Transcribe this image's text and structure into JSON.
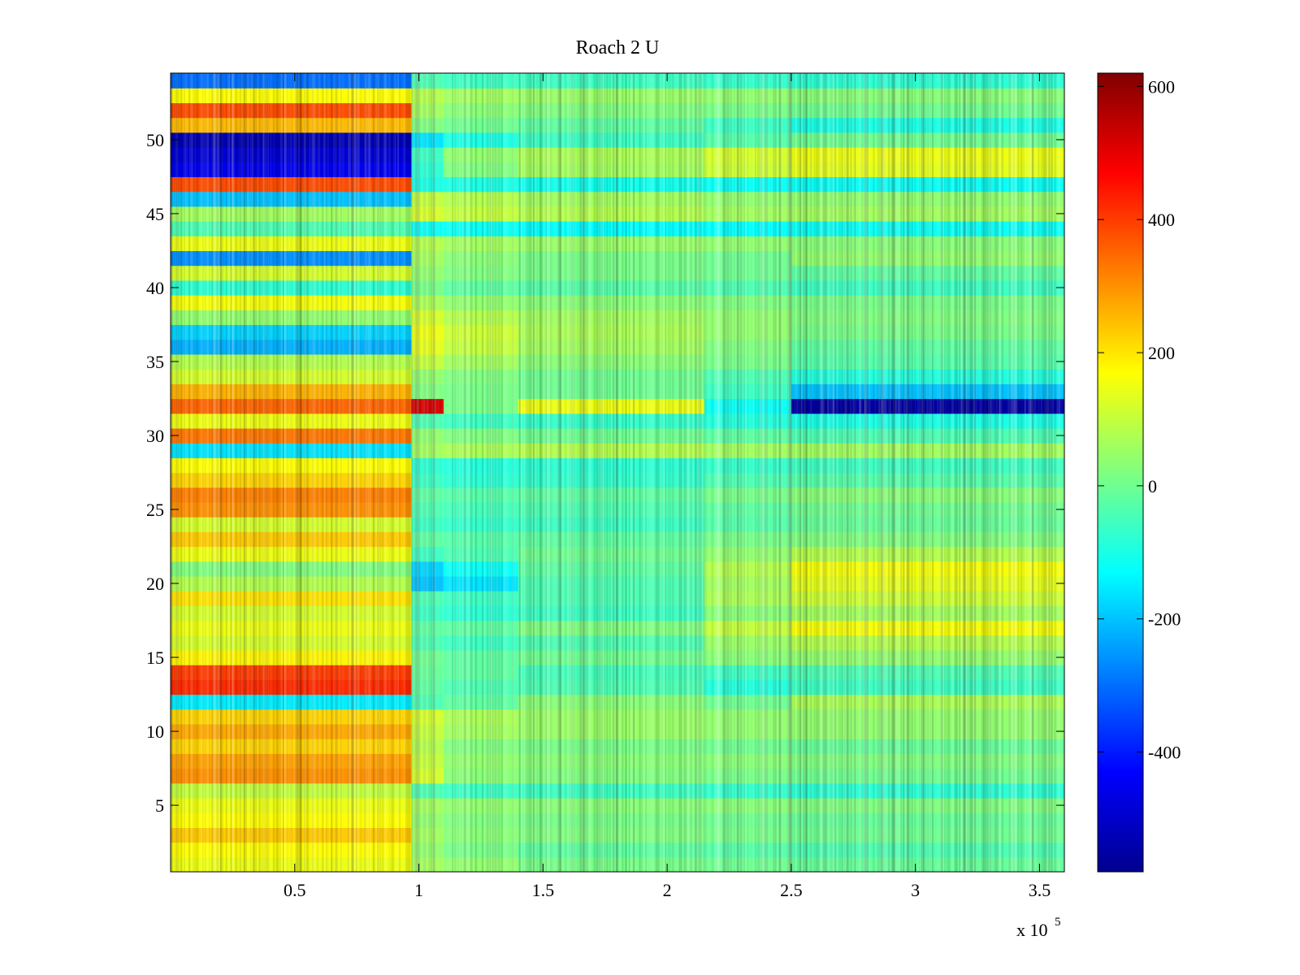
{
  "chart_data": {
    "type": "heatmap",
    "title": "Roach 2 U",
    "xlabel": "",
    "ylabel": "",
    "x_multiplier_label": "x 10",
    "x_multiplier_exponent": "5",
    "xlim": [
      0,
      360000
    ],
    "ylim": [
      0.5,
      54.5
    ],
    "x_ticks": [
      {
        "value": 50000,
        "label": "0.5"
      },
      {
        "value": 100000,
        "label": "1"
      },
      {
        "value": 150000,
        "label": "1.5"
      },
      {
        "value": 200000,
        "label": "2"
      },
      {
        "value": 250000,
        "label": "2.5"
      },
      {
        "value": 300000,
        "label": "3"
      },
      {
        "value": 350000,
        "label": "3.5"
      }
    ],
    "y_ticks": [
      {
        "value": 5,
        "label": "5"
      },
      {
        "value": 10,
        "label": "10"
      },
      {
        "value": 15,
        "label": "15"
      },
      {
        "value": 20,
        "label": "20"
      },
      {
        "value": 25,
        "label": "25"
      },
      {
        "value": 30,
        "label": "30"
      },
      {
        "value": 35,
        "label": "35"
      },
      {
        "value": 40,
        "label": "40"
      },
      {
        "value": 45,
        "label": "45"
      },
      {
        "value": 50,
        "label": "50"
      }
    ],
    "colormap": "jet",
    "clim": [
      -580,
      620
    ],
    "colorbar_ticks": [
      {
        "value": 600,
        "label": "600"
      },
      {
        "value": 400,
        "label": "400"
      },
      {
        "value": 200,
        "label": "200"
      },
      {
        "value": 0,
        "label": "0"
      },
      {
        "value": -200,
        "label": "-200"
      },
      {
        "value": -400,
        "label": "-400"
      }
    ],
    "time_segments": [
      0,
      97000,
      110000,
      140000,
      215000,
      250000,
      360000
    ],
    "rows": [
      {
        "row": 1,
        "values": [
          150,
          60,
          40,
          10,
          0,
          -10
        ]
      },
      {
        "row": 2,
        "values": [
          170,
          40,
          10,
          -20,
          -30,
          -40
        ]
      },
      {
        "row": 3,
        "values": [
          230,
          60,
          30,
          20,
          10,
          0
        ]
      },
      {
        "row": 4,
        "values": [
          170,
          40,
          20,
          10,
          0,
          -10
        ]
      },
      {
        "row": 5,
        "values": [
          150,
          60,
          40,
          30,
          30,
          20
        ]
      },
      {
        "row": 6,
        "values": [
          100,
          -40,
          -60,
          -60,
          -70,
          -80
        ]
      },
      {
        "row": 7,
        "values": [
          300,
          120,
          30,
          20,
          10,
          0
        ]
      },
      {
        "row": 8,
        "values": [
          280,
          100,
          40,
          30,
          30,
          20
        ]
      },
      {
        "row": 9,
        "values": [
          220,
          80,
          20,
          10,
          0,
          -10
        ]
      },
      {
        "row": 10,
        "values": [
          270,
          100,
          60,
          50,
          40,
          40
        ]
      },
      {
        "row": 11,
        "values": [
          220,
          120,
          70,
          50,
          40,
          40
        ]
      },
      {
        "row": 12,
        "values": [
          -150,
          -40,
          -20,
          30,
          0,
          70
        ]
      },
      {
        "row": 13,
        "values": [
          420,
          -20,
          -40,
          -40,
          -90,
          -60
        ]
      },
      {
        "row": 14,
        "values": [
          400,
          -10,
          -20,
          -50,
          -60,
          -40
        ]
      },
      {
        "row": 15,
        "values": [
          180,
          0,
          -20,
          0,
          30,
          40
        ]
      },
      {
        "row": 16,
        "values": [
          120,
          -40,
          -60,
          -40,
          50,
          80
        ]
      },
      {
        "row": 17,
        "values": [
          150,
          -20,
          -20,
          20,
          100,
          160
        ]
      },
      {
        "row": 18,
        "values": [
          120,
          -60,
          -80,
          -60,
          30,
          60
        ]
      },
      {
        "row": 19,
        "values": [
          200,
          -40,
          -60,
          -40,
          70,
          110
        ]
      },
      {
        "row": 20,
        "values": [
          80,
          -200,
          -160,
          -40,
          60,
          140
        ]
      },
      {
        "row": 21,
        "values": [
          20,
          -180,
          -120,
          -20,
          80,
          160
        ]
      },
      {
        "row": 22,
        "values": [
          150,
          -60,
          -40,
          0,
          40,
          80
        ]
      },
      {
        "row": 23,
        "values": [
          230,
          -20,
          -30,
          -20,
          10,
          20
        ]
      },
      {
        "row": 24,
        "values": [
          120,
          -60,
          -70,
          -60,
          -30,
          -10
        ]
      },
      {
        "row": 25,
        "values": [
          300,
          -40,
          -50,
          -40,
          -20,
          0
        ]
      },
      {
        "row": 26,
        "values": [
          320,
          -20,
          -30,
          -20,
          10,
          30
        ]
      },
      {
        "row": 27,
        "values": [
          220,
          -60,
          -80,
          -70,
          -40,
          -30
        ]
      },
      {
        "row": 28,
        "values": [
          170,
          -80,
          -90,
          -80,
          -70,
          -60
        ]
      },
      {
        "row": 29,
        "values": [
          -160,
          60,
          70,
          80,
          60,
          60
        ]
      },
      {
        "row": 30,
        "values": [
          330,
          40,
          20,
          0,
          -20,
          -40
        ]
      },
      {
        "row": 31,
        "values": [
          150,
          -40,
          -60,
          -70,
          -90,
          -100
        ]
      },
      {
        "row": 32,
        "values": [
          350,
          520,
          10,
          150,
          -120,
          -540
        ]
      },
      {
        "row": 33,
        "values": [
          260,
          20,
          10,
          0,
          -60,
          -200
        ]
      },
      {
        "row": 34,
        "values": [
          120,
          40,
          20,
          0,
          -40,
          -90
        ]
      },
      {
        "row": 35,
        "values": [
          80,
          100,
          60,
          30,
          10,
          -30
        ]
      },
      {
        "row": 36,
        "values": [
          -220,
          140,
          100,
          60,
          20,
          -20
        ]
      },
      {
        "row": 37,
        "values": [
          -180,
          150,
          110,
          70,
          40,
          10
        ]
      },
      {
        "row": 38,
        "values": [
          40,
          120,
          80,
          60,
          40,
          20
        ]
      },
      {
        "row": 39,
        "values": [
          160,
          70,
          40,
          30,
          20,
          10
        ]
      },
      {
        "row": 40,
        "values": [
          -80,
          10,
          -20,
          -30,
          -40,
          -60
        ]
      },
      {
        "row": 41,
        "values": [
          120,
          40,
          20,
          10,
          0,
          -20
        ]
      },
      {
        "row": 42,
        "values": [
          -260,
          60,
          30,
          10,
          0,
          40
        ]
      },
      {
        "row": 43,
        "values": [
          150,
          80,
          60,
          50,
          40,
          30
        ]
      },
      {
        "row": 44,
        "values": [
          -40,
          -120,
          -120,
          -130,
          -130,
          -120
        ]
      },
      {
        "row": 45,
        "values": [
          60,
          120,
          100,
          80,
          60,
          60
        ]
      },
      {
        "row": 46,
        "values": [
          -200,
          100,
          80,
          60,
          40,
          40
        ]
      },
      {
        "row": 47,
        "values": [
          380,
          -100,
          -100,
          -110,
          -120,
          -120
        ]
      },
      {
        "row": 48,
        "values": [
          -450,
          -80,
          20,
          60,
          110,
          140
        ]
      },
      {
        "row": 49,
        "values": [
          -480,
          -60,
          40,
          70,
          120,
          150
        ]
      },
      {
        "row": 50,
        "values": [
          -520,
          -160,
          -100,
          -60,
          -30,
          0
        ]
      },
      {
        "row": 51,
        "values": [
          250,
          20,
          0,
          -20,
          -60,
          -100
        ]
      },
      {
        "row": 52,
        "values": [
          380,
          60,
          30,
          20,
          10,
          0
        ]
      },
      {
        "row": 53,
        "values": [
          170,
          80,
          60,
          50,
          40,
          30
        ]
      },
      {
        "row": 54,
        "values": [
          -300,
          -40,
          -60,
          -60,
          -70,
          -80
        ]
      }
    ]
  }
}
